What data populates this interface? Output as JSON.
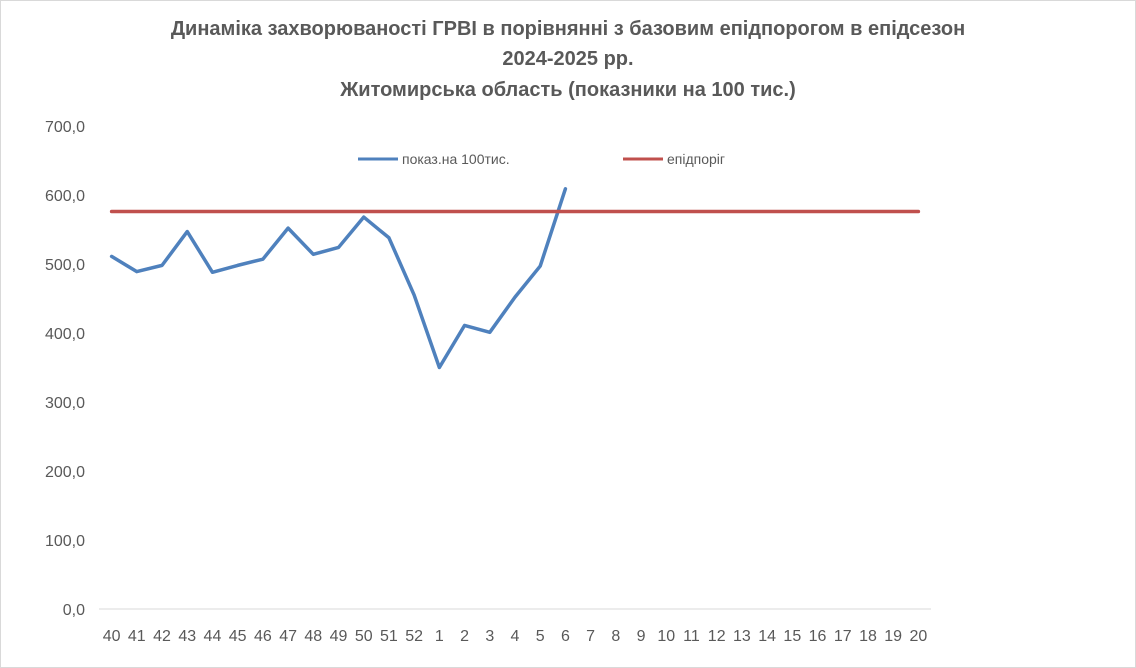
{
  "chart_data": {
    "type": "line",
    "title": [
      "Динаміка захворюваності ГРВІ в порівнянні з базовим епідпорогом в епідсезон",
      "2024-2025 рр.",
      "Житомирська область (показники на 100 тис.)"
    ],
    "xlabel": "",
    "ylabel": "",
    "categories": [
      "40",
      "41",
      "42",
      "43",
      "44",
      "45",
      "46",
      "47",
      "48",
      "49",
      "50",
      "51",
      "52",
      "1",
      "2",
      "3",
      "4",
      "5",
      "6",
      "7",
      "8",
      "9",
      "10",
      "11",
      "12",
      "13",
      "14",
      "15",
      "16",
      "17",
      "18",
      "19",
      "20"
    ],
    "ylim": [
      0,
      700
    ],
    "yticks": [
      "0,0",
      "100,0",
      "200,0",
      "300,0",
      "400,0",
      "500,0",
      "600,0",
      "700,0"
    ],
    "grid": false,
    "legend_position": "top",
    "series": [
      {
        "name": "показ.на 100тис.",
        "color": "#4f81bd",
        "values": [
          511,
          489,
          498,
          547,
          488,
          498,
          507,
          552,
          514,
          524,
          568,
          538,
          455,
          350,
          411,
          401,
          452,
          497,
          609,
          null,
          null,
          null,
          null,
          null,
          null,
          null,
          null,
          null,
          null,
          null,
          null,
          null,
          null
        ]
      },
      {
        "name": "епідпоріг",
        "color": "#c0504d",
        "values": [
          576,
          576,
          576,
          576,
          576,
          576,
          576,
          576,
          576,
          576,
          576,
          576,
          576,
          576,
          576,
          576,
          576,
          576,
          576,
          576,
          576,
          576,
          576,
          576,
          576,
          576,
          576,
          576,
          576,
          576,
          576,
          576,
          576
        ]
      }
    ]
  }
}
